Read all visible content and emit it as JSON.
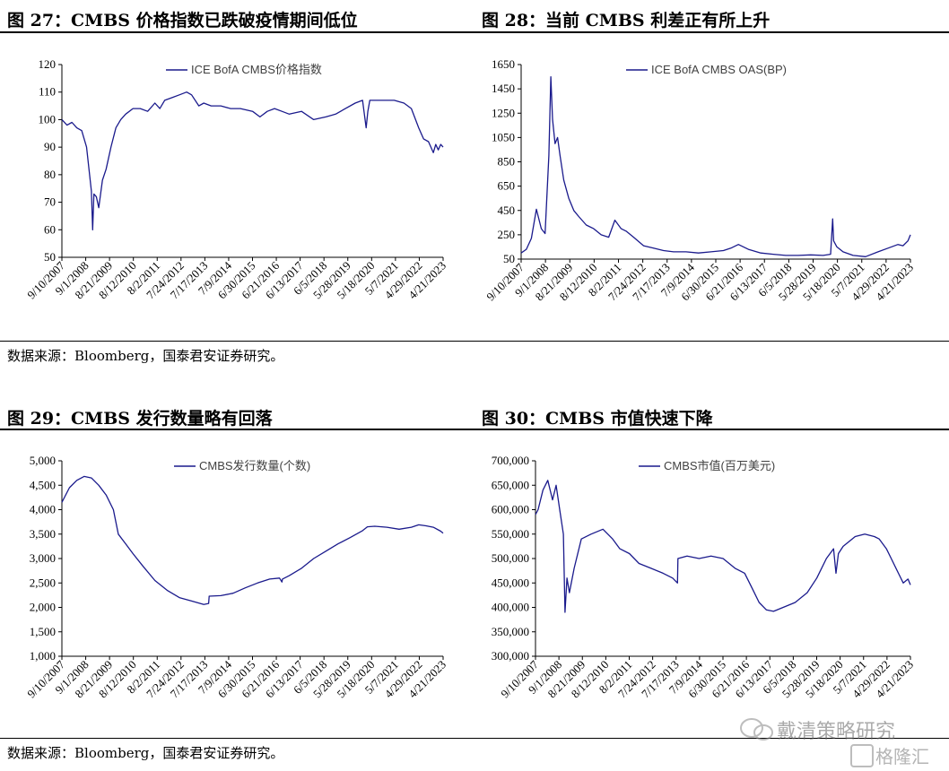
{
  "fig27": {
    "title": "图 27：CMBS 价格指数已跌破疫情期间低位"
  },
  "fig28": {
    "title": "图 28：当前 CMBS 利差正有所上升"
  },
  "fig29": {
    "title": "图 29：CMBS 发行数量略有回落"
  },
  "fig30": {
    "title": "图 30：CMBS 市值快速下降"
  },
  "source_top": "数据来源：Bloomberg，国泰君安证券研究。",
  "source_bottom": "数据来源：Bloomberg，国泰君安证券研究。",
  "watermark": {
    "text": "戴清策略研究",
    "logo_text": "格隆汇"
  },
  "chart_data": [
    {
      "id": "c27",
      "type": "line",
      "x_tick_labels": [
        "9/10/2007",
        "9/1/2008",
        "8/21/2009",
        "8/12/2010",
        "8/2/2011",
        "7/24/2012",
        "7/17/2013",
        "7/9/2014",
        "6/30/2015",
        "6/21/2016",
        "6/13/2017",
        "6/5/2018",
        "5/28/2019",
        "5/18/2020",
        "5/7/2021",
        "4/29/2022",
        "4/21/2023"
      ],
      "ylim": [
        50,
        120
      ],
      "y_ticks": [
        50,
        60,
        70,
        80,
        90,
        100,
        110,
        120
      ],
      "y_tick_labels": [
        "50",
        "60",
        "70",
        "80",
        "90",
        "100",
        "110",
        "120"
      ],
      "series": [
        {
          "name": "ICE BofA CMBS价格指数",
          "color": "#1a1a8c",
          "x": [
            2007.69,
            2007.9,
            2008.1,
            2008.3,
            2008.5,
            2008.7,
            2008.8,
            2008.9,
            2008.95,
            2009.0,
            2009.1,
            2009.2,
            2009.35,
            2009.5,
            2009.7,
            2009.9,
            2010.1,
            2010.3,
            2010.6,
            2010.9,
            2011.2,
            2011.5,
            2011.7,
            2011.9,
            2012.2,
            2012.5,
            2012.8,
            2013.0,
            2013.3,
            2013.5,
            2013.8,
            2014.2,
            2014.6,
            2015.0,
            2015.5,
            2015.8,
            2016.1,
            2016.4,
            2016.7,
            2017.0,
            2017.5,
            2018.0,
            2018.5,
            2018.9,
            2019.3,
            2019.7,
            2020.0,
            2020.15,
            2020.22,
            2020.3,
            2020.5,
            2020.9,
            2021.3,
            2021.7,
            2022.0,
            2022.3,
            2022.5,
            2022.7,
            2022.9,
            2023.0,
            2023.1,
            2023.2,
            2023.3
          ],
          "y": [
            100,
            98,
            99,
            97,
            96,
            90,
            82,
            74,
            60,
            73,
            72,
            68,
            78,
            82,
            90,
            97,
            100,
            102,
            104,
            104,
            103,
            106,
            104,
            107,
            108,
            109,
            110,
            109,
            105,
            106,
            105,
            105,
            104,
            104,
            103,
            101,
            103,
            104,
            103,
            102,
            103,
            100,
            101,
            102,
            104,
            106,
            107,
            97,
            103,
            107,
            107,
            107,
            107,
            106,
            104,
            97,
            93,
            92,
            88,
            91,
            89,
            91,
            90
          ]
        }
      ]
    },
    {
      "id": "c28",
      "type": "line",
      "x_tick_labels": [
        "9/10/2007",
        "9/1/2008",
        "8/21/2009",
        "8/12/2010",
        "8/2/2011",
        "7/24/2012",
        "7/17/2013",
        "7/9/2014",
        "6/30/2015",
        "6/21/2016",
        "6/13/2017",
        "6/5/2018",
        "5/28/2019",
        "5/18/2020",
        "5/7/2021",
        "4/29/2022",
        "4/21/2023"
      ],
      "ylim": [
        50,
        1650
      ],
      "y_ticks": [
        50,
        250,
        450,
        650,
        850,
        1050,
        1250,
        1450,
        1650
      ],
      "y_tick_labels": [
        "50",
        "250",
        "450",
        "650",
        "850",
        "1050",
        "1250",
        "1450",
        "1650"
      ],
      "series": [
        {
          "name": "ICE BofA CMBS OAS(BP)",
          "color": "#1a1a8c",
          "x": [
            2007.69,
            2007.9,
            2008.1,
            2008.3,
            2008.5,
            2008.65,
            2008.8,
            2008.88,
            2008.95,
            2009.05,
            2009.15,
            2009.25,
            2009.4,
            2009.6,
            2009.8,
            2010.0,
            2010.3,
            2010.6,
            2010.9,
            2011.2,
            2011.45,
            2011.7,
            2011.9,
            2012.2,
            2012.6,
            2013.0,
            2013.4,
            2013.8,
            2014.3,
            2014.8,
            2015.3,
            2015.8,
            2016.1,
            2016.4,
            2016.8,
            2017.3,
            2017.8,
            2018.3,
            2018.8,
            2019.3,
            2019.8,
            2020.1,
            2020.18,
            2020.22,
            2020.35,
            2020.6,
            2021.0,
            2021.5,
            2022.0,
            2022.4,
            2022.8,
            2023.0,
            2023.2,
            2023.3
          ],
          "y": [
            100,
            130,
            220,
            460,
            300,
            260,
            900,
            1550,
            1200,
            1000,
            1050,
            900,
            700,
            550,
            450,
            400,
            330,
            300,
            250,
            230,
            370,
            300,
            280,
            230,
            160,
            140,
            120,
            110,
            110,
            100,
            110,
            120,
            140,
            170,
            130,
            100,
            90,
            80,
            80,
            85,
            80,
            90,
            380,
            200,
            150,
            110,
            80,
            70,
            110,
            140,
            170,
            160,
            200,
            250
          ]
        }
      ]
    },
    {
      "id": "c29",
      "type": "line",
      "x_tick_labels": [
        "9/10/2007",
        "9/1/2008",
        "8/21/2009",
        "8/12/2010",
        "8/2/2011",
        "7/24/2012",
        "7/17/2013",
        "7/9/2014",
        "6/30/2015",
        "6/21/2016",
        "6/13/2017",
        "6/5/2018",
        "5/28/2019",
        "5/18/2020",
        "5/7/2021",
        "4/29/2022",
        "4/21/2023"
      ],
      "ylim": [
        1000,
        5000
      ],
      "y_ticks": [
        1000,
        1500,
        2000,
        2500,
        3000,
        3500,
        4000,
        4500,
        5000
      ],
      "y_tick_labels": [
        "1,000",
        "1,500",
        "2,000",
        "2,500",
        "3,000",
        "3,500",
        "4,000",
        "4,500",
        "5,000"
      ],
      "series": [
        {
          "name": "CMBS发行数量(个数)",
          "color": "#1a1a8c",
          "x": [
            2007.69,
            2008.0,
            2008.3,
            2008.6,
            2008.9,
            2009.2,
            2009.5,
            2009.8,
            2010.0,
            2010.3,
            2010.6,
            2011.0,
            2011.5,
            2012.0,
            2012.5,
            2013.0,
            2013.5,
            2013.7,
            2013.72,
            2014.2,
            2014.7,
            2015.2,
            2015.7,
            2016.2,
            2016.6,
            2016.7,
            2016.72,
            2017.0,
            2017.5,
            2018.0,
            2018.5,
            2019.0,
            2019.5,
            2020.0,
            2020.2,
            2020.5,
            2021.0,
            2021.5,
            2022.0,
            2022.3,
            2022.6,
            2022.9,
            2023.2,
            2023.3
          ],
          "y": [
            4150,
            4450,
            4600,
            4680,
            4650,
            4500,
            4300,
            4000,
            3500,
            3300,
            3100,
            2850,
            2550,
            2350,
            2200,
            2130,
            2060,
            2080,
            2230,
            2240,
            2290,
            2400,
            2500,
            2580,
            2600,
            2520,
            2580,
            2650,
            2800,
            3000,
            3150,
            3300,
            3430,
            3570,
            3650,
            3660,
            3640,
            3600,
            3640,
            3690,
            3670,
            3640,
            3560,
            3520
          ]
        }
      ]
    },
    {
      "id": "c30",
      "type": "line",
      "x_tick_labels": [
        "9/10/2007",
        "9/1/2008",
        "8/21/2009",
        "8/12/2010",
        "8/2/2011",
        "7/24/2012",
        "7/17/2013",
        "7/9/2014",
        "6/30/2015",
        "6/21/2016",
        "6/13/2017",
        "6/5/2018",
        "5/28/2019",
        "5/18/2020",
        "5/7/2021",
        "4/29/2022",
        "4/21/2023"
      ],
      "ylim": [
        300000,
        700000
      ],
      "y_ticks": [
        300000,
        350000,
        400000,
        450000,
        500000,
        550000,
        600000,
        650000,
        700000
      ],
      "y_tick_labels": [
        "300,000",
        "350,000",
        "400,000",
        "450,000",
        "500,000",
        "550,000",
        "600,000",
        "650,000",
        "700,000"
      ],
      "series": [
        {
          "name": "CMBS市值(百万美元)",
          "color": "#1a1a8c",
          "x": [
            2007.69,
            2007.8,
            2008.0,
            2008.2,
            2008.4,
            2008.55,
            2008.7,
            2008.85,
            2008.92,
            2009.0,
            2009.1,
            2009.3,
            2009.6,
            2010.0,
            2010.5,
            2010.9,
            2011.2,
            2011.6,
            2012.0,
            2012.5,
            2013.0,
            2013.4,
            2013.6,
            2013.62,
            2014.0,
            2014.5,
            2015.0,
            2015.5,
            2016.0,
            2016.4,
            2016.7,
            2017.0,
            2017.3,
            2017.6,
            2018.0,
            2018.5,
            2019.0,
            2019.4,
            2019.8,
            2020.1,
            2020.2,
            2020.3,
            2020.5,
            2021.0,
            2021.4,
            2021.8,
            2022.0,
            2022.3,
            2022.5,
            2022.8,
            2023.0,
            2023.2,
            2023.3
          ],
          "y": [
            590000,
            600000,
            640000,
            660000,
            620000,
            650000,
            600000,
            550000,
            390000,
            460000,
            430000,
            480000,
            540000,
            550000,
            560000,
            540000,
            520000,
            510000,
            490000,
            480000,
            470000,
            460000,
            450000,
            500000,
            505000,
            500000,
            505000,
            500000,
            480000,
            470000,
            440000,
            410000,
            395000,
            392000,
            400000,
            410000,
            430000,
            460000,
            500000,
            520000,
            470000,
            510000,
            525000,
            545000,
            550000,
            545000,
            540000,
            520000,
            500000,
            470000,
            450000,
            458000,
            446000
          ]
        }
      ]
    }
  ]
}
